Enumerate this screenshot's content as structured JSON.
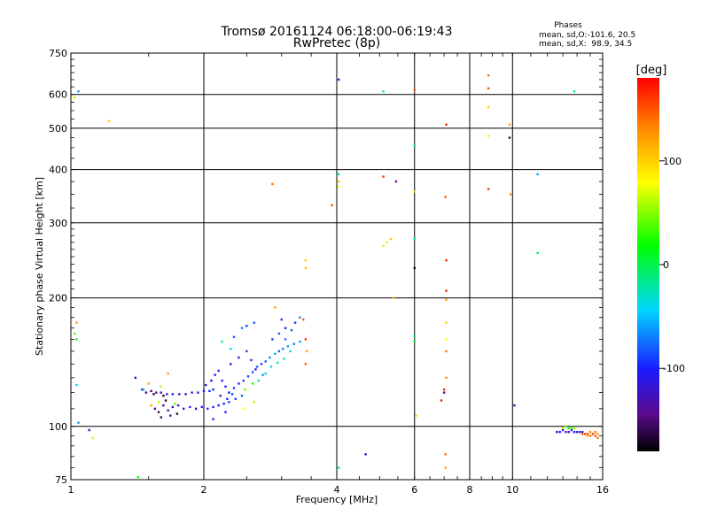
{
  "chart_data": {
    "type": "scatter",
    "title": "Tromsø 20161124 06:18:00-06:19:43",
    "subtitle": "RwPretec (8p)",
    "xlabel": "Frequency [MHz]",
    "ylabel": "Stationary phase Virtual Height [km]",
    "x_scale": "log",
    "y_scale": "log",
    "xlim": [
      1,
      16
    ],
    "ylim": [
      75,
      750
    ],
    "x_ticks": [
      1,
      2,
      4,
      6,
      8,
      10,
      16
    ],
    "y_ticks": [
      75,
      100,
      200,
      300,
      400,
      500,
      600,
      750
    ],
    "grid": true,
    "phases": {
      "title": "Phases",
      "line_o": "mean, sd,O:-101.6, 20.5",
      "line_x": "mean, sd,X:  98.9, 34.5"
    },
    "colorbar": {
      "label": "[deg]",
      "range": [
        -180,
        180
      ],
      "ticks": [
        100,
        0,
        -100
      ],
      "colormap": "rainbow"
    },
    "points": [
      [
        1.04,
        610,
        -60
      ],
      [
        1.02,
        590,
        60
      ],
      [
        1.03,
        175,
        120
      ],
      [
        1.02,
        165,
        40
      ],
      [
        1.03,
        160,
        20
      ],
      [
        1.03,
        125,
        -40
      ],
      [
        1.04,
        102,
        -60
      ],
      [
        1.1,
        98,
        -120
      ],
      [
        1.12,
        94,
        90
      ],
      [
        1.22,
        520,
        100
      ],
      [
        1.42,
        76,
        20
      ],
      [
        1.4,
        130,
        -130
      ],
      [
        1.45,
        122,
        -110
      ],
      [
        1.48,
        120,
        -150
      ],
      [
        1.52,
        121,
        -150
      ],
      [
        1.56,
        120,
        -140
      ],
      [
        1.6,
        120,
        -120
      ],
      [
        1.65,
        119,
        -110
      ],
      [
        1.7,
        119,
        -100
      ],
      [
        1.76,
        119,
        -110
      ],
      [
        1.82,
        119,
        -120
      ],
      [
        1.88,
        120,
        -110
      ],
      [
        1.94,
        120,
        -100
      ],
      [
        2.0,
        121,
        -105
      ],
      [
        2.06,
        121,
        -100
      ],
      [
        2.1,
        122,
        -95
      ],
      [
        1.5,
        126,
        120
      ],
      [
        1.6,
        124,
        60
      ],
      [
        1.66,
        133,
        120
      ],
      [
        1.46,
        122,
        -60
      ],
      [
        1.54,
        119,
        -160
      ],
      [
        1.62,
        118,
        -160
      ],
      [
        1.55,
        110,
        -130
      ],
      [
        1.58,
        108,
        -150
      ],
      [
        1.62,
        112,
        -140
      ],
      [
        1.66,
        109,
        -130
      ],
      [
        1.7,
        111,
        -120
      ],
      [
        1.75,
        112,
        -110
      ],
      [
        1.8,
        110,
        -130
      ],
      [
        1.86,
        111,
        -100
      ],
      [
        1.92,
        110,
        -110
      ],
      [
        1.98,
        111,
        -100
      ],
      [
        2.04,
        110,
        -95
      ],
      [
        2.1,
        111,
        -100
      ],
      [
        2.16,
        112,
        -110
      ],
      [
        2.22,
        113,
        -100
      ],
      [
        2.28,
        114,
        -90
      ],
      [
        1.6,
        105,
        -150
      ],
      [
        1.68,
        106,
        -140
      ],
      [
        1.52,
        112,
        120
      ],
      [
        1.58,
        114,
        60
      ],
      [
        1.72,
        113,
        40
      ],
      [
        1.64,
        115,
        -160
      ],
      [
        1.74,
        107,
        -170
      ],
      [
        2.02,
        125,
        -100
      ],
      [
        2.08,
        128,
        -110
      ],
      [
        2.12,
        132,
        -100
      ],
      [
        2.16,
        135,
        -110
      ],
      [
        2.2,
        128,
        -100
      ],
      [
        2.24,
        124,
        -105
      ],
      [
        2.28,
        120,
        -100
      ],
      [
        2.34,
        123,
        -90
      ],
      [
        2.4,
        126,
        -95
      ],
      [
        2.46,
        128,
        -85
      ],
      [
        2.52,
        131,
        -90
      ],
      [
        2.58,
        134,
        -85
      ],
      [
        2.64,
        138,
        -80
      ],
      [
        2.7,
        140,
        -90
      ],
      [
        2.76,
        142,
        -80
      ],
      [
        2.82,
        145,
        -70
      ],
      [
        2.9,
        148,
        -60
      ],
      [
        2.96,
        150,
        -80
      ],
      [
        3.02,
        152,
        -70
      ],
      [
        3.1,
        154,
        -60
      ],
      [
        3.2,
        156,
        -70
      ],
      [
        3.3,
        158,
        -60
      ],
      [
        2.3,
        140,
        -100
      ],
      [
        2.4,
        145,
        -100
      ],
      [
        2.5,
        150,
        -90
      ],
      [
        2.56,
        143,
        -95
      ],
      [
        2.62,
        136,
        -110
      ],
      [
        2.72,
        132,
        -60
      ],
      [
        2.84,
        138,
        -40
      ],
      [
        2.94,
        141,
        -30
      ],
      [
        3.04,
        144,
        -20
      ],
      [
        3.14,
        150,
        -40
      ],
      [
        2.36,
        116,
        -90
      ],
      [
        2.44,
        118,
        -80
      ],
      [
        2.48,
        122,
        40
      ],
      [
        2.58,
        126,
        20
      ],
      [
        2.66,
        128,
        -20
      ],
      [
        2.76,
        133,
        -40
      ],
      [
        2.18,
        118,
        -120
      ],
      [
        2.26,
        116,
        -100
      ],
      [
        2.32,
        119,
        -90
      ],
      [
        2.2,
        158,
        -30
      ],
      [
        2.3,
        152,
        -40
      ],
      [
        2.34,
        162,
        -80
      ],
      [
        2.44,
        170,
        -70
      ],
      [
        2.5,
        172,
        -90
      ],
      [
        2.6,
        175,
        -80
      ],
      [
        2.9,
        190,
        120
      ],
      [
        3.0,
        178,
        -90
      ],
      [
        3.06,
        170,
        -100
      ],
      [
        3.16,
        168,
        -80
      ],
      [
        3.22,
        175,
        -90
      ],
      [
        3.3,
        180,
        -70
      ],
      [
        3.36,
        178,
        150
      ],
      [
        3.4,
        160,
        160
      ],
      [
        3.42,
        150,
        120
      ],
      [
        3.4,
        140,
        150
      ],
      [
        2.86,
        160,
        -90
      ],
      [
        2.96,
        165,
        -80
      ],
      [
        3.06,
        160,
        -70
      ],
      [
        2.46,
        110,
        80
      ],
      [
        2.6,
        114,
        60
      ],
      [
        2.24,
        108,
        -100
      ],
      [
        2.1,
        104,
        -110
      ],
      [
        2.86,
        370,
        140
      ],
      [
        3.4,
        245,
        100
      ],
      [
        3.4,
        235,
        110
      ],
      [
        3.9,
        330,
        150
      ],
      [
        4.04,
        650,
        -120
      ],
      [
        4.04,
        390,
        -30
      ],
      [
        4.04,
        375,
        100
      ],
      [
        4.04,
        365,
        80
      ],
      [
        4.04,
        80,
        -20
      ],
      [
        4.65,
        86,
        -120
      ],
      [
        5.1,
        610,
        -30
      ],
      [
        5.1,
        385,
        160
      ],
      [
        5.2,
        270,
        70
      ],
      [
        5.3,
        275,
        100
      ],
      [
        5.1,
        265,
        90
      ],
      [
        5.45,
        375,
        -140
      ],
      [
        5.38,
        200,
        110
      ],
      [
        6.0,
        615,
        150
      ],
      [
        6.0,
        455,
        -30
      ],
      [
        6.0,
        355,
        100
      ],
      [
        6.0,
        275,
        -20
      ],
      [
        6.0,
        235,
        -170
      ],
      [
        6.0,
        163,
        -20
      ],
      [
        6.0,
        158,
        0
      ],
      [
        6.05,
        106,
        100
      ],
      [
        6.9,
        115,
        170
      ],
      [
        7.08,
        510,
        170
      ],
      [
        7.05,
        345,
        150
      ],
      [
        7.08,
        245,
        170
      ],
      [
        7.08,
        208,
        170
      ],
      [
        7.08,
        198,
        120
      ],
      [
        7.08,
        175,
        100
      ],
      [
        7.08,
        160,
        80
      ],
      [
        7.08,
        150,
        140
      ],
      [
        7.08,
        130,
        130
      ],
      [
        7.0,
        122,
        170
      ],
      [
        7.05,
        86,
        140
      ],
      [
        7.05,
        80,
        120
      ],
      [
        7.0,
        120,
        -140
      ],
      [
        8.82,
        665,
        140
      ],
      [
        8.82,
        620,
        150
      ],
      [
        8.82,
        560,
        100
      ],
      [
        8.82,
        480,
        90
      ],
      [
        8.82,
        360,
        160
      ],
      [
        9.85,
        510,
        120
      ],
      [
        9.9,
        350,
        130
      ],
      [
        9.85,
        475,
        -160
      ],
      [
        10.1,
        112,
        -120
      ],
      [
        11.4,
        390,
        -60
      ],
      [
        11.4,
        255,
        0
      ],
      [
        13.8,
        610,
        -20
      ],
      [
        12.6,
        97,
        -120
      ],
      [
        12.8,
        97,
        -100
      ],
      [
        13.0,
        98,
        -130
      ],
      [
        13.2,
        97,
        -90
      ],
      [
        13.4,
        97,
        -140
      ],
      [
        13.6,
        98,
        -120
      ],
      [
        13.8,
        97,
        -100
      ],
      [
        14.0,
        97,
        -110
      ],
      [
        14.2,
        97,
        -130
      ],
      [
        14.4,
        97,
        -100
      ],
      [
        13.0,
        99,
        60
      ],
      [
        13.2,
        100,
        40
      ],
      [
        13.4,
        99,
        20
      ],
      [
        13.6,
        99,
        30
      ],
      [
        13.8,
        99,
        50
      ],
      [
        14.4,
        96,
        150
      ],
      [
        14.6,
        96,
        160
      ],
      [
        14.8,
        96,
        150
      ],
      [
        15.0,
        95,
        140
      ],
      [
        15.2,
        96,
        160
      ],
      [
        15.4,
        95,
        150
      ],
      [
        15.6,
        94,
        140
      ],
      [
        15.0,
        97,
        130
      ],
      [
        15.4,
        97,
        140
      ],
      [
        14.8,
        95,
        110
      ],
      [
        15.6,
        96,
        120
      ]
    ]
  }
}
